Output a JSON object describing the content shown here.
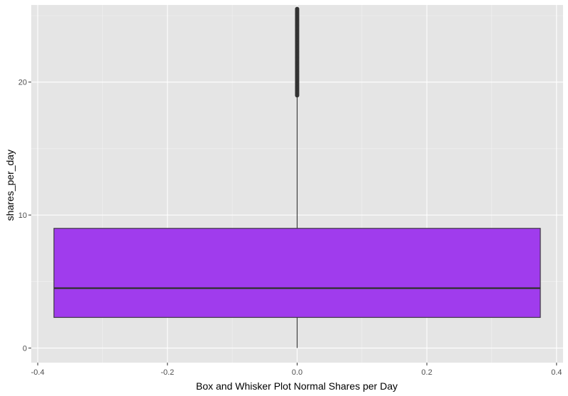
{
  "chart_data": {
    "type": "box",
    "xlabel": "Box and Whisker Plot Normal Shares per Day",
    "ylabel": "shares_per_day",
    "x_range": [
      -0.41,
      0.41
    ],
    "y_range": [
      -1.1,
      25.8
    ],
    "x_ticks": [
      -0.4,
      -0.2,
      0.0,
      0.2,
      0.4
    ],
    "x_tick_labels": [
      "-0.4",
      "-0.2",
      "0.0",
      "0.2",
      "0.4"
    ],
    "y_ticks": [
      0,
      10,
      20
    ],
    "y_tick_labels": [
      "0",
      "10",
      "20"
    ],
    "grid": true,
    "box": {
      "x_center": 0.0,
      "x_left": -0.375,
      "x_right": 0.375,
      "min": 0.0,
      "q1": 2.3,
      "median": 4.5,
      "q3": 9.0,
      "whisker_high": 19.0,
      "outlier_range": [
        19.0,
        25.5
      ]
    },
    "colors": {
      "panel_bg": "#e5e5e5",
      "grid_major": "#ffffff",
      "box_fill": "#a03ced",
      "box_stroke": "#333333",
      "outlier": "#333333"
    }
  }
}
